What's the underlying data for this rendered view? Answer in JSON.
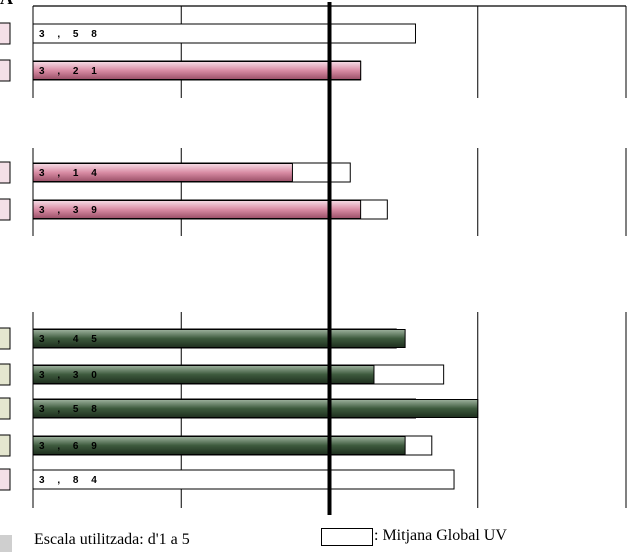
{
  "heading_fragment": "A",
  "chart_data": {
    "type": "bar",
    "orientation": "horizontal",
    "xlim": [
      1,
      5
    ],
    "reference_line": 3,
    "grid": true,
    "colors": {
      "pink": "#d98ca4",
      "green": "#3d5a3d",
      "reference": "#ffffff",
      "stroke": "#000000"
    },
    "groups": [
      {
        "bars": [
          {
            "label": "3 , 5 8",
            "value": 3.58,
            "color": "white",
            "reference": 3.58
          },
          {
            "label": "3 , 2 1",
            "value": 3.21,
            "color": "pink",
            "reference": 3.21
          }
        ]
      },
      {
        "bars": [
          {
            "label": "3 , 1 4",
            "value": 2.75,
            "color": "pink",
            "reference": 3.14
          },
          {
            "label": "3 , 3 9",
            "value": 3.21,
            "color": "pink",
            "reference": 3.39
          }
        ]
      },
      {
        "bars": [
          {
            "label": "3 , 4 5",
            "value": 3.51,
            "color": "green",
            "reference": 3.45
          },
          {
            "label": "3 , 3 0",
            "value": 3.3,
            "color": "green",
            "reference": 3.77
          },
          {
            "label": "3 , 5 8",
            "value": 4.0,
            "color": "green",
            "reference": 3.58
          },
          {
            "label": "3 , 6 9",
            "value": 3.51,
            "color": "green",
            "reference": 3.69
          },
          {
            "label": "3 , 8 4",
            "value": 3.84,
            "color": "white",
            "reference": 3.84
          }
        ]
      }
    ]
  },
  "footer": {
    "scale_note": "Escala utilitzada: d'1 a 5",
    "legend_label": ": Mitjana Global UV"
  }
}
